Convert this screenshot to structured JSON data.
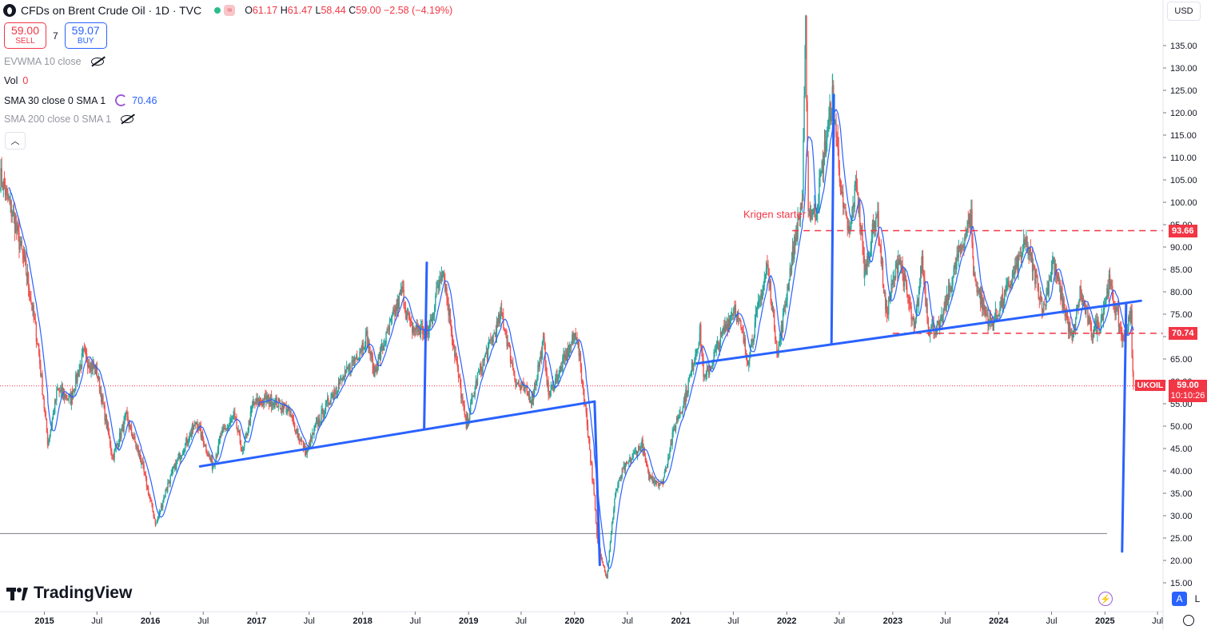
{
  "header": {
    "title": "CFDs on Brent Crude Oil · 1D · TVC",
    "wave_icon": "≈",
    "ohlc": [
      {
        "k": "O",
        "v": "61.17"
      },
      {
        "k": "H",
        "v": "61.47"
      },
      {
        "k": "L",
        "v": "58.44"
      },
      {
        "k": "C",
        "v": "59.00"
      },
      {
        "k": "",
        "v": "−2.58 (−4.19%)"
      }
    ]
  },
  "trade": {
    "sell_price": "59.00",
    "sell_label": "SELL",
    "spread": "7",
    "buy_price": "59.07",
    "buy_label": "BUY"
  },
  "indicators": {
    "evwma": "EVWMA 10 close",
    "vol_label": "Vol",
    "vol_value": "0",
    "sma30": "SMA 30 close 0 SMA 1",
    "sma30_value": "70.46",
    "sma200": "SMA 200 close 0 SMA 1"
  },
  "brand": "TradingView",
  "currency": "USD",
  "scale_buttons": {
    "auto": "A",
    "log": "L"
  },
  "chart_data": {
    "type": "candlestick",
    "symbol": "UKOIL",
    "last_price": "59.00",
    "countdown": "10:10:26",
    "colors": {
      "up": "#26a69a",
      "down": "#ef5350",
      "sma": "#2962ff",
      "drawing": "#2962ff",
      "hline": "#f23645"
    },
    "x_range": [
      "2014-08-01",
      "2025-07-20"
    ],
    "y_range": [
      14,
      140
    ],
    "y_ticks": [
      15,
      20,
      25,
      30,
      35,
      40,
      45,
      50,
      55,
      60,
      65,
      70,
      75,
      80,
      85,
      90,
      95,
      100,
      105,
      110,
      115,
      120,
      125,
      130,
      135
    ],
    "x_ticks": [
      {
        "d": "2015-01-01",
        "label": "2015",
        "bold": true
      },
      {
        "d": "2015-07-01",
        "label": "Jul",
        "bold": false
      },
      {
        "d": "2016-01-01",
        "label": "2016",
        "bold": true
      },
      {
        "d": "2016-07-01",
        "label": "Jul",
        "bold": false
      },
      {
        "d": "2017-01-01",
        "label": "2017",
        "bold": true
      },
      {
        "d": "2017-07-01",
        "label": "Jul",
        "bold": false
      },
      {
        "d": "2018-01-01",
        "label": "2018",
        "bold": true
      },
      {
        "d": "2018-07-01",
        "label": "Jul",
        "bold": false
      },
      {
        "d": "2019-01-01",
        "label": "2019",
        "bold": true
      },
      {
        "d": "2019-07-01",
        "label": "Jul",
        "bold": false
      },
      {
        "d": "2020-01-01",
        "label": "2020",
        "bold": true
      },
      {
        "d": "2020-07-01",
        "label": "Jul",
        "bold": false
      },
      {
        "d": "2021-01-01",
        "label": "2021",
        "bold": true
      },
      {
        "d": "2021-07-01",
        "label": "Jul",
        "bold": false
      },
      {
        "d": "2022-01-01",
        "label": "2022",
        "bold": true
      },
      {
        "d": "2022-07-01",
        "label": "Jul",
        "bold": false
      },
      {
        "d": "2023-01-01",
        "label": "2023",
        "bold": true
      },
      {
        "d": "2023-07-01",
        "label": "Jul",
        "bold": false
      },
      {
        "d": "2024-01-01",
        "label": "2024",
        "bold": true
      },
      {
        "d": "2024-07-01",
        "label": "Jul",
        "bold": false
      },
      {
        "d": "2025-01-01",
        "label": "2025",
        "bold": true
      },
      {
        "d": "2025-07-01",
        "label": "Jul",
        "bold": false
      }
    ],
    "price_path": [
      [
        "2014-08-01",
        106
      ],
      [
        "2014-09-15",
        97
      ],
      [
        "2014-11-01",
        84
      ],
      [
        "2014-12-10",
        68
      ],
      [
        "2015-01-13",
        46
      ],
      [
        "2015-02-15",
        58
      ],
      [
        "2015-04-01",
        56
      ],
      [
        "2015-05-15",
        66
      ],
      [
        "2015-07-01",
        62
      ],
      [
        "2015-08-24",
        43
      ],
      [
        "2015-10-10",
        52
      ],
      [
        "2015-12-01",
        42
      ],
      [
        "2016-01-20",
        28
      ],
      [
        "2016-03-01",
        37
      ],
      [
        "2016-04-15",
        44
      ],
      [
        "2016-06-08",
        51
      ],
      [
        "2016-08-02",
        41
      ],
      [
        "2016-09-01",
        48
      ],
      [
        "2016-10-15",
        52
      ],
      [
        "2016-11-14",
        44
      ],
      [
        "2016-12-20",
        55
      ],
      [
        "2017-02-15",
        56
      ],
      [
        "2017-04-15",
        54
      ],
      [
        "2017-06-21",
        44
      ],
      [
        "2017-07-25",
        50
      ],
      [
        "2017-09-25",
        58
      ],
      [
        "2017-11-01",
        61
      ],
      [
        "2018-01-15",
        70
      ],
      [
        "2018-02-09",
        62
      ],
      [
        "2018-05-17",
        80
      ],
      [
        "2018-06-15",
        72
      ],
      [
        "2018-08-16",
        71
      ],
      [
        "2018-10-03",
        86
      ],
      [
        "2018-11-15",
        66
      ],
      [
        "2018-12-24",
        50
      ],
      [
        "2019-02-01",
        61
      ],
      [
        "2019-04-25",
        75
      ],
      [
        "2019-06-12",
        60
      ],
      [
        "2019-08-07",
        56
      ],
      [
        "2019-09-16",
        69
      ],
      [
        "2019-10-03",
        57
      ],
      [
        "2019-11-15",
        63
      ],
      [
        "2020-01-07",
        71
      ],
      [
        "2020-02-10",
        53
      ],
      [
        "2020-03-09",
        34
      ],
      [
        "2020-03-18",
        25
      ],
      [
        "2020-04-21",
        16
      ],
      [
        "2020-05-20",
        35
      ],
      [
        "2020-06-15",
        40
      ],
      [
        "2020-08-20",
        46
      ],
      [
        "2020-09-10",
        39
      ],
      [
        "2020-10-28",
        37
      ],
      [
        "2020-12-15",
        51
      ],
      [
        "2021-01-15",
        56
      ],
      [
        "2021-03-08",
        71
      ],
      [
        "2021-03-23",
        60
      ],
      [
        "2021-05-15",
        69
      ],
      [
        "2021-07-06",
        77
      ],
      [
        "2021-08-20",
        65
      ],
      [
        "2021-10-26",
        86
      ],
      [
        "2021-12-01",
        66
      ],
      [
        "2022-01-15",
        86
      ],
      [
        "2022-02-24",
        101
      ],
      [
        "2022-03-07",
        139
      ],
      [
        "2022-03-16",
        98
      ],
      [
        "2022-04-11",
        98
      ],
      [
        "2022-06-08",
        124
      ],
      [
        "2022-07-14",
        98
      ],
      [
        "2022-08-05",
        93
      ],
      [
        "2022-08-29",
        105
      ],
      [
        "2022-09-26",
        84
      ],
      [
        "2022-11-07",
        98
      ],
      [
        "2022-12-09",
        75
      ],
      [
        "2023-01-23",
        88
      ],
      [
        "2023-03-17",
        71
      ],
      [
        "2023-04-12",
        87
      ],
      [
        "2023-05-04",
        72
      ],
      [
        "2023-06-12",
        72
      ],
      [
        "2023-08-10",
        87
      ],
      [
        "2023-09-28",
        97
      ],
      [
        "2023-10-06",
        84
      ],
      [
        "2023-11-16",
        75
      ],
      [
        "2023-12-12",
        73
      ],
      [
        "2024-01-15",
        78
      ],
      [
        "2024-04-05",
        91
      ],
      [
        "2024-06-04",
        76
      ],
      [
        "2024-07-05",
        87
      ],
      [
        "2024-09-10",
        69
      ],
      [
        "2024-10-07",
        80
      ],
      [
        "2024-11-15",
        71
      ],
      [
        "2024-12-15",
        73
      ],
      [
        "2025-01-15",
        82
      ],
      [
        "2025-03-05",
        69
      ],
      [
        "2025-04-02",
        75
      ],
      [
        "2025-04-04",
        65
      ],
      [
        "2025-04-09",
        59
      ]
    ],
    "horizontal_levels": [
      {
        "price": 93.66,
        "label": "93.66",
        "from": "2022-01-20"
      },
      {
        "price": 70.74,
        "label": "70.74",
        "from": "2023-01-01"
      }
    ],
    "gray_level": 26,
    "last_line_price": 59.0,
    "trendlines": [
      [
        [
          "2016-06-20",
          41
        ],
        [
          "2020-03-10",
          55.5
        ]
      ],
      [
        [
          "2020-03-10",
          55.5
        ],
        [
          "2020-03-28",
          19
        ]
      ],
      [
        [
          "2018-08-01",
          49.5
        ],
        [
          "2018-08-10",
          86.5
        ]
      ],
      [
        [
          "2021-02-25",
          64
        ],
        [
          "2025-05-05",
          78
        ]
      ],
      [
        [
          "2022-06-04",
          68.5
        ],
        [
          "2022-06-12",
          124
        ]
      ],
      [
        [
          "2025-03-15",
          77.5
        ],
        [
          "2025-03-01",
          22
        ]
      ]
    ],
    "annotation": {
      "text": "Krigen starter",
      "d": "2021-11-20",
      "price": 96.5
    }
  }
}
